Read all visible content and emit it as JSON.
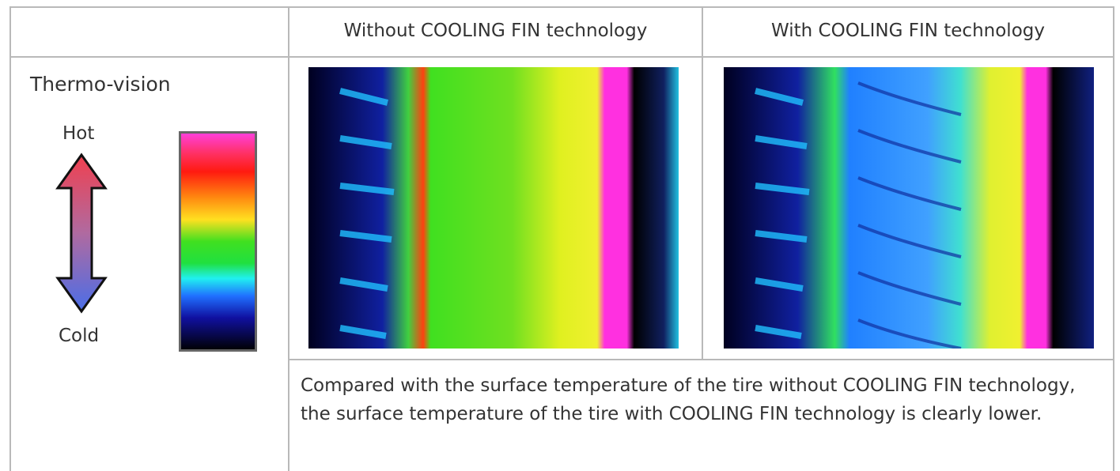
{
  "table": {
    "header": [
      "Without COOLING FIN technology",
      "With COOLING FIN technology"
    ],
    "legend": {
      "title": "Thermo-vision",
      "hot": "Hot",
      "cold": "Cold"
    },
    "caption": "Compared with the surface temperature of the tire without COOLING FIN technology, the surface temperature of the tire with COOLING FIN technology is clearly lower."
  }
}
